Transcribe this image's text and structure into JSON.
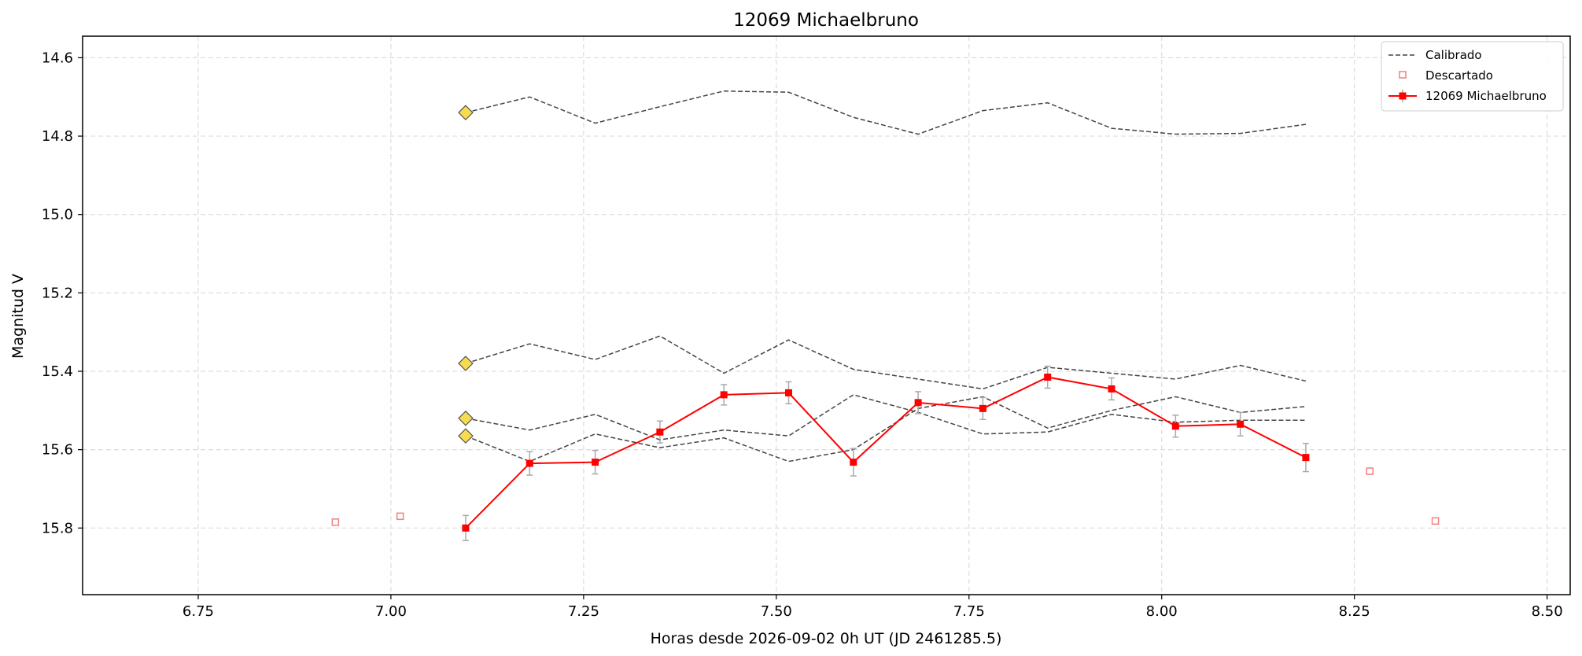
{
  "chart_data": {
    "type": "line",
    "title": "12069 Michaelbruno",
    "xlabel": "Horas desde 2026-09-02 0h UT (JD 2461285.5)",
    "ylabel": "Magnitud V",
    "xlim": [
      6.6,
      8.53
    ],
    "ylim": [
      15.97,
      14.545
    ],
    "y_inverted": true,
    "grid": true,
    "legend_position": "top-right",
    "xticks": [
      "6.75",
      "7.00",
      "7.25",
      "7.50",
      "7.75",
      "8.00",
      "8.25",
      "8.50"
    ],
    "yticks": [
      "14.6",
      "14.8",
      "15.0",
      "15.2",
      "15.4",
      "15.6",
      "15.8"
    ],
    "legend": [
      {
        "label": "Calibrado",
        "style": "dashed-line",
        "color": "#444444"
      },
      {
        "label": "Descartado",
        "style": "open-square",
        "color": "#f08080"
      },
      {
        "label": "12069 Michaelbruno",
        "style": "line-square-errorbar",
        "color": "#ff0000"
      }
    ],
    "x": [
      7.097,
      7.18,
      7.265,
      7.349,
      7.432,
      7.516,
      7.6,
      7.684,
      7.768,
      7.852,
      7.935,
      8.018,
      8.102,
      8.187
    ],
    "calibrated_series": [
      [
        14.74,
        14.7,
        14.767,
        14.725,
        14.685,
        14.688,
        14.752,
        14.795,
        14.735,
        14.715,
        14.78,
        14.795,
        14.793,
        14.77
      ],
      [
        15.38,
        15.33,
        15.37,
        15.31,
        15.405,
        15.32,
        15.395,
        15.42,
        15.445,
        15.39,
        15.405,
        15.42,
        15.385,
        15.425
      ],
      [
        15.52,
        15.55,
        15.51,
        15.575,
        15.55,
        15.565,
        15.46,
        15.505,
        15.56,
        15.555,
        15.51,
        15.53,
        15.525,
        15.525
      ],
      [
        15.565,
        15.63,
        15.56,
        15.595,
        15.57,
        15.63,
        15.6,
        15.495,
        15.465,
        15.545,
        15.5,
        15.465,
        15.505,
        15.49
      ]
    ],
    "calibrated_start_markers": [
      14.74,
      15.38,
      15.52,
      15.565
    ],
    "series": [
      {
        "name": "12069 Michaelbruno",
        "x": [
          7.097,
          7.18,
          7.265,
          7.349,
          7.432,
          7.516,
          7.6,
          7.684,
          7.768,
          7.852,
          7.935,
          8.018,
          8.102,
          8.187
        ],
        "values": [
          15.8,
          15.635,
          15.632,
          15.555,
          15.46,
          15.455,
          15.632,
          15.48,
          15.495,
          15.415,
          15.445,
          15.54,
          15.535,
          15.62
        ],
        "errors": [
          0.032,
          0.03,
          0.03,
          0.028,
          0.026,
          0.028,
          0.035,
          0.028,
          0.028,
          0.028,
          0.028,
          0.028,
          0.03,
          0.036
        ]
      }
    ],
    "discarded": {
      "x": [
        6.928,
        7.012,
        8.27,
        8.355
      ],
      "values": [
        15.785,
        15.77,
        15.655,
        15.782
      ]
    }
  },
  "colors": {
    "calibrated": "#444444",
    "discarded": "#f08080",
    "target": "#ff0000",
    "marker_fill": "#f7dc4f",
    "errorbar": "#aaaaaa",
    "grid": "#dddddd"
  }
}
